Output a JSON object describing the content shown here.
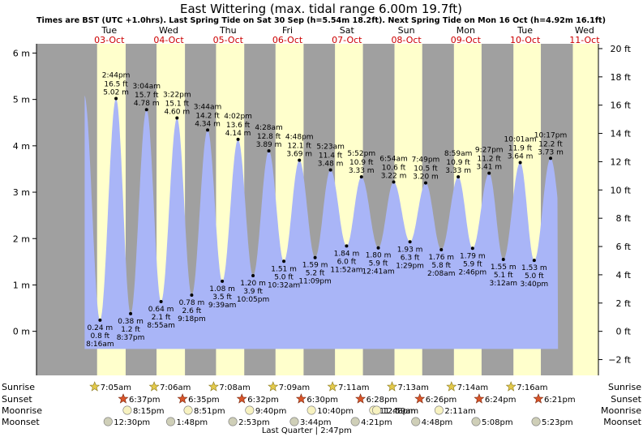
{
  "colors": {
    "night": "#a0a0a0",
    "day": "#ffffcc",
    "tide_fill": "#a9b5f7",
    "accent_red": "#cc0000",
    "sun_star": "#e3c94b",
    "sunset_star": "#d9552a",
    "moon_pale": "#f7f2c0",
    "moon_grey": "#cfcfb8"
  },
  "chart_data": {
    "type": "area",
    "title": "East Wittering (max. tidal range 6.00m 19.7ft)",
    "subtitle": "Times are BST (UTC +1.0hrs). Last Spring Tide on Sat 30 Sep (h=5.54m 18.2ft). Next Spring Tide on Mon 16 Oct (h=4.92m 16.1ft)",
    "ylabel_left_unit": "m",
    "ylabel_right_unit": "ft",
    "ylim_m": [
      -0.95,
      6.2
    ],
    "left_ticks": [
      "0 m",
      "1 m",
      "2 m",
      "3 m",
      "4 m",
      "5 m",
      "6 m"
    ],
    "right_ticks": [
      "−2 ft",
      "0 ft",
      "2 ft",
      "4 ft",
      "6 ft",
      "8 ft",
      "10 ft",
      "12 ft",
      "14 ft",
      "16 ft",
      "18 ft",
      "20 ft"
    ],
    "x_unit": "hours from 00:00 Tue 03-Oct (BST)",
    "xlim_hours": [
      -17.4,
      209.6
    ],
    "days": [
      {
        "name": "Tue",
        "date": "03-Oct"
      },
      {
        "name": "Wed",
        "date": "04-Oct"
      },
      {
        "name": "Thu",
        "date": "05-Oct"
      },
      {
        "name": "Fri",
        "date": "06-Oct"
      },
      {
        "name": "Sat",
        "date": "07-Oct"
      },
      {
        "name": "Sun",
        "date": "08-Oct"
      },
      {
        "name": "Mon",
        "date": "09-Oct"
      },
      {
        "name": "Tue",
        "date": "10-Oct"
      },
      {
        "name": "Wed",
        "date": "11-Oct"
      }
    ],
    "tides": [
      {
        "type": "low",
        "time": "8:16 am",
        "m": "0.24 m",
        "ft": "0.8 ft",
        "t": 8.27,
        "h": 0.24
      },
      {
        "type": "high",
        "time": "2:44 pm",
        "m": "5.02 m",
        "ft": "16.5 ft",
        "t": 14.73,
        "h": 5.02
      },
      {
        "type": "low",
        "time": "8:37 pm",
        "m": "0.38 m",
        "ft": "1.2 ft",
        "t": 20.62,
        "h": 0.38
      },
      {
        "type": "high",
        "time": "3:04 am",
        "m": "4.78 m",
        "ft": "15.7 ft",
        "t": 27.07,
        "h": 4.78
      },
      {
        "type": "low",
        "time": "8:55 am",
        "m": "0.64 m",
        "ft": "2.1 ft",
        "t": 32.92,
        "h": 0.64
      },
      {
        "type": "high",
        "time": "3:22 pm",
        "m": "4.60 m",
        "ft": "15.1 ft",
        "t": 39.37,
        "h": 4.6
      },
      {
        "type": "low",
        "time": "9:18 pm",
        "m": "0.78 m",
        "ft": "2.6 ft",
        "t": 45.3,
        "h": 0.78
      },
      {
        "type": "high",
        "time": "3:44 am",
        "m": "4.34 m",
        "ft": "14.2 ft",
        "t": 51.73,
        "h": 4.34
      },
      {
        "type": "low",
        "time": "9:39 am",
        "m": "1.08 m",
        "ft": "3.5 ft",
        "t": 57.65,
        "h": 1.08
      },
      {
        "type": "high",
        "time": "4:02 pm",
        "m": "4.14 m",
        "ft": "13.6 ft",
        "t": 64.03,
        "h": 4.14
      },
      {
        "type": "low",
        "time": "10:05 pm",
        "m": "1.20 m",
        "ft": "3.9 ft",
        "t": 70.08,
        "h": 1.2
      },
      {
        "type": "high",
        "time": "4:28 am",
        "m": "3.89 m",
        "ft": "12.8 ft",
        "t": 76.47,
        "h": 3.89
      },
      {
        "type": "low",
        "time": "10:32 am",
        "m": "1.51 m",
        "ft": "5.0 ft",
        "t": 82.53,
        "h": 1.51
      },
      {
        "type": "high",
        "time": "4:48 pm",
        "m": "3.69 m",
        "ft": "12.1 ft",
        "t": 88.8,
        "h": 3.69
      },
      {
        "type": "low",
        "time": "11:09 pm",
        "m": "1.59 m",
        "ft": "5.2 ft",
        "t": 95.15,
        "h": 1.59
      },
      {
        "type": "high",
        "time": "5:23 am",
        "m": "3.48 m",
        "ft": "11.4 ft",
        "t": 101.38,
        "h": 3.48
      },
      {
        "type": "low",
        "time": "11:52 am",
        "m": "1.84 m",
        "ft": "6.0 ft",
        "t": 107.87,
        "h": 1.84
      },
      {
        "type": "high",
        "time": "5:52 pm",
        "m": "3.33 m",
        "ft": "10.9 ft",
        "t": 113.87,
        "h": 3.33
      },
      {
        "type": "low",
        "time": "12:41 am",
        "m": "1.80 m",
        "ft": "5.9 ft",
        "t": 120.68,
        "h": 1.8
      },
      {
        "type": "high",
        "time": "6:54 am",
        "m": "3.22 m",
        "ft": "10.6 ft",
        "t": 126.9,
        "h": 3.22
      },
      {
        "type": "low",
        "time": "1:29 pm",
        "m": "1.93 m",
        "ft": "6.3 ft",
        "t": 133.48,
        "h": 1.93
      },
      {
        "type": "high",
        "time": "7:49 pm",
        "m": "3.20 m",
        "ft": "10.5 ft",
        "t": 139.82,
        "h": 3.2
      },
      {
        "type": "low",
        "time": "2:08 am",
        "m": "1.76 m",
        "ft": "5.8 ft",
        "t": 146.13,
        "h": 1.76
      },
      {
        "type": "high",
        "time": "8:59 am",
        "m": "3.33 m",
        "ft": "10.9 ft",
        "t": 152.98,
        "h": 3.33
      },
      {
        "type": "low",
        "time": "2:46 pm",
        "m": "1.79 m",
        "ft": "5.9 ft",
        "t": 158.77,
        "h": 1.79
      },
      {
        "type": "high",
        "time": "9:27 pm",
        "m": "3.41 m",
        "ft": "11.2 ft",
        "t": 165.45,
        "h": 3.41
      },
      {
        "type": "low",
        "time": "3:12 am",
        "m": "1.55 m",
        "ft": "5.1 ft",
        "t": 171.2,
        "h": 1.55
      },
      {
        "type": "high",
        "time": "10:01 am",
        "m": "3.64 m",
        "ft": "11.9 ft",
        "t": 178.02,
        "h": 3.64
      },
      {
        "type": "low",
        "time": "3:40 pm",
        "m": "1.53 m",
        "ft": "5.0 ft",
        "t": 183.67,
        "h": 1.53
      },
      {
        "type": "high",
        "time": "10:17 pm",
        "m": "3.73 m",
        "ft": "12.2 ft",
        "t": 190.28,
        "h": 3.73
      }
    ],
    "sun": [
      {
        "sunrise": "7:05am",
        "sunset": "6:37pm",
        "rise_t": 7.08,
        "set_t": 18.62
      },
      {
        "sunrise": "7:06am",
        "sunset": "6:35pm",
        "rise_t": 31.1,
        "set_t": 42.58
      },
      {
        "sunrise": "7:08am",
        "sunset": "6:32pm",
        "rise_t": 55.13,
        "set_t": 66.53
      },
      {
        "sunrise": "7:09am",
        "sunset": "6:30pm",
        "rise_t": 79.15,
        "set_t": 90.5
      },
      {
        "sunrise": "7:11am",
        "sunset": "6:28pm",
        "rise_t": 103.18,
        "set_t": 114.47
      },
      {
        "sunrise": "7:13am",
        "sunset": "6:26pm",
        "rise_t": 127.22,
        "set_t": 138.43
      },
      {
        "sunrise": "7:14am",
        "sunset": "6:24pm",
        "rise_t": 151.23,
        "set_t": 162.4
      },
      {
        "sunrise": "7:16am",
        "sunset": "6:21pm",
        "rise_t": 175.27,
        "set_t": 186.35
      }
    ],
    "moonrise": [
      {
        "time": "8:15pm",
        "t": 20.25
      },
      {
        "time": "8:51pm",
        "t": 44.85
      },
      {
        "time": "9:40pm",
        "t": 69.67
      },
      {
        "time": "10:40pm",
        "t": 94.67
      },
      {
        "time": "11:48pm",
        "t": 119.8
      },
      {
        "time": "12:59am",
        "t": 120.98
      },
      {
        "time": "2:11am",
        "t": 146.18
      }
    ],
    "moonset": [
      {
        "time": "12:30pm",
        "t": 12.5
      },
      {
        "time": "1:48pm",
        "t": 37.8
      },
      {
        "time": "2:53pm",
        "t": 62.88
      },
      {
        "time": "3:44pm",
        "t": 87.73
      },
      {
        "time": "4:21pm",
        "t": 112.35
      },
      {
        "time": "4:48pm",
        "t": 136.8
      },
      {
        "time": "5:08pm",
        "t": 161.13
      },
      {
        "time": "5:23pm",
        "t": 185.38
      }
    ],
    "moon_phase": {
      "label": "Last Quarter | 2:47pm",
      "t": 110.78
    },
    "row_labels": {
      "sunrise": "Sunrise",
      "sunset": "Sunset",
      "moonrise": "Moonrise",
      "moonset": "Moonset"
    }
  }
}
